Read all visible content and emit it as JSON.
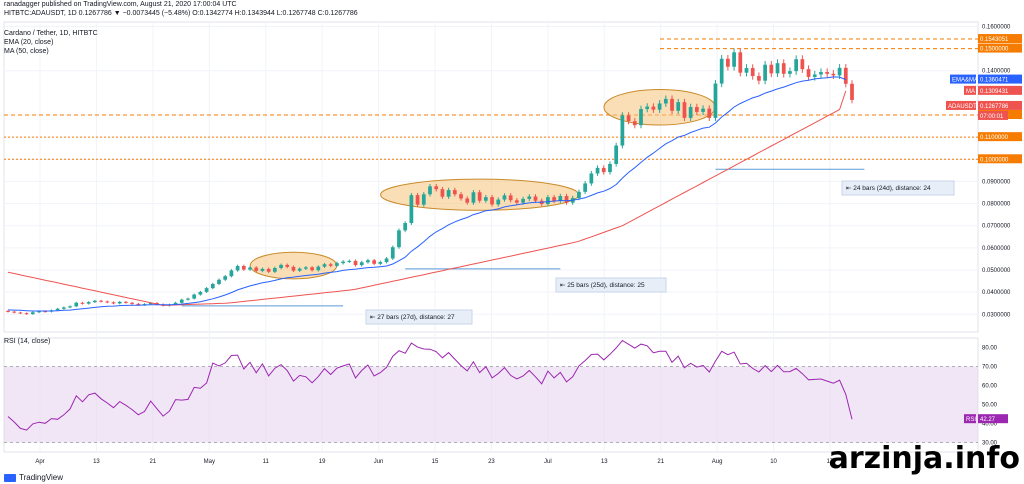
{
  "header": {
    "published": "ranadagger published on TradingView.com, August 21, 2020 17:00:04 UTC",
    "symbol_line": "HITBTC:ADAUSDT, 1D  0.1267786 ▼ −0.0073445 (−5.48%) O:0.1342774 H:0.1343944 L:0.1267748 C:0.1267786",
    "pair": "Cardano / Tether, 1D, HITBTC",
    "ema": "EMA (20, close)",
    "ma": "MA (50, close)",
    "rsi": "RSI (14, close)"
  },
  "watermark": "arzinja.info",
  "brand": "TradingView",
  "colors": {
    "up": "#26a69a",
    "down": "#ef5350",
    "ema": "#2962ff",
    "ma": "#ef5350",
    "rsi_line": "#9c27b0",
    "rsi_band": "#e8d6f0",
    "level": "#f57c00",
    "ellipse_fill": "#f6c27a",
    "ellipse_stroke": "#c98a2a",
    "measure": "#5b9bd5"
  },
  "chart_data": {
    "type": "candlestick",
    "x_labels": [
      "Apr",
      "13",
      "21",
      "May",
      "11",
      "19",
      "Jun",
      "15",
      "23",
      "Jul",
      "13",
      "21",
      "Aug",
      "10",
      "17"
    ],
    "y_ticks": [
      "0.1600000",
      "0.1400000",
      "0.1200000",
      "0.1100000",
      "0.1000000",
      "0.0900000",
      "0.0800000",
      "0.0700000",
      "0.0600000",
      "0.0500000",
      "0.0400000",
      "0.0300000"
    ],
    "ylim": [
      0.022,
      0.162
    ],
    "close": [
      0.0312,
      0.0308,
      0.0305,
      0.0301,
      0.0309,
      0.0314,
      0.0312,
      0.0318,
      0.0325,
      0.0331,
      0.0336,
      0.0352,
      0.0348,
      0.0355,
      0.0361,
      0.0358,
      0.0354,
      0.0349,
      0.0356,
      0.0352,
      0.0347,
      0.0342,
      0.0346,
      0.0351,
      0.0345,
      0.0339,
      0.0344,
      0.0352,
      0.0366,
      0.0371,
      0.0389,
      0.0401,
      0.0418,
      0.0437,
      0.0456,
      0.0472,
      0.0498,
      0.0518,
      0.0502,
      0.0511,
      0.0496,
      0.0505,
      0.0492,
      0.0509,
      0.0523,
      0.0514,
      0.0497,
      0.0506,
      0.0512,
      0.0499,
      0.0515,
      0.0526,
      0.0519,
      0.0531,
      0.0538,
      0.0541,
      0.0522,
      0.0535,
      0.0544,
      0.0528,
      0.0536,
      0.0552,
      0.0603,
      0.0679,
      0.0712,
      0.0838,
      0.0795,
      0.0842,
      0.0878,
      0.0865,
      0.0831,
      0.0861,
      0.0842,
      0.0823,
      0.0804,
      0.0851,
      0.0813,
      0.0829,
      0.0796,
      0.0818,
      0.0837,
      0.0815,
      0.0804,
      0.0821,
      0.0832,
      0.0813,
      0.0798,
      0.0829,
      0.0812,
      0.0834,
      0.0804,
      0.0825,
      0.0853,
      0.0891,
      0.0936,
      0.0961,
      0.0942,
      0.0979,
      0.1062,
      0.1198,
      0.1172,
      0.1154,
      0.1227,
      0.1238,
      0.1224,
      0.1252,
      0.1273,
      0.1219,
      0.1258,
      0.1187,
      0.1236,
      0.1214,
      0.1229,
      0.1187,
      0.1342,
      0.1454,
      0.1418,
      0.1483,
      0.1391,
      0.1412,
      0.1376,
      0.1355,
      0.1427,
      0.1388,
      0.1434,
      0.1386,
      0.1398,
      0.1452,
      0.1407,
      0.1372,
      0.1383,
      0.1394,
      0.1386,
      0.1379,
      0.1413,
      0.1341,
      0.1268
    ],
    "ema20": [
      0.032,
      0.0319,
      0.0318,
      0.0316,
      0.0315,
      0.0315,
      0.0315,
      0.0315,
      0.0316,
      0.0318,
      0.0319,
      0.0322,
      0.0325,
      0.0328,
      0.0331,
      0.0334,
      0.0336,
      0.0337,
      0.0339,
      0.034,
      0.0341,
      0.0341,
      0.0342,
      0.0343,
      0.0343,
      0.0343,
      0.0343,
      0.0344,
      0.0346,
      0.0349,
      0.0353,
      0.0357,
      0.0363,
      0.037,
      0.0378,
      0.0387,
      0.0398,
      0.041,
      0.0419,
      0.0428,
      0.0435,
      0.0442,
      0.0447,
      0.0453,
      0.046,
      0.0465,
      0.0468,
      0.0472,
      0.0475,
      0.0478,
      0.0481,
      0.0486,
      0.0489,
      0.0493,
      0.0498,
      0.0502,
      0.0504,
      0.0507,
      0.0511,
      0.0512,
      0.0515,
      0.0518,
      0.0527,
      0.0542,
      0.0558,
      0.0585,
      0.0605,
      0.0628,
      0.0652,
      0.0672,
      0.0687,
      0.0704,
      0.0717,
      0.0728,
      0.0737,
      0.075,
      0.0758,
      0.0768,
      0.0771,
      0.0776,
      0.0785,
      0.079,
      0.0794,
      0.0799,
      0.0803,
      0.0806,
      0.0806,
      0.0809,
      0.0811,
      0.0814,
      0.0813,
      0.0815,
      0.082,
      0.0826,
      0.0837,
      0.0848,
      0.0856,
      0.0868,
      0.0886,
      0.0915,
      0.0941,
      0.0962,
      0.0986,
      0.1009,
      0.1028,
      0.1049,
      0.107,
      0.1084,
      0.11,
      0.1108,
      0.1121,
      0.1131,
      0.1141,
      0.1145,
      0.1164,
      0.1191,
      0.1212,
      0.1236,
      0.1252,
      0.1265,
      0.1277,
      0.1286,
      0.1299,
      0.1308,
      0.1318,
      0.1326,
      0.1336,
      0.1346,
      0.1353,
      0.1357,
      0.1363,
      0.1366,
      0.1368,
      0.1372,
      0.1371,
      0.136
    ],
    "ma50": [
      0.049,
      0.0484,
      0.0478,
      0.0472,
      0.0466,
      0.046,
      0.0454,
      0.0448,
      0.0442,
      0.0436,
      0.043,
      0.0424,
      0.0418,
      0.0412,
      0.0406,
      0.04,
      0.0394,
      0.0388,
      0.0382,
      0.0376,
      0.037,
      0.0364,
      0.0358,
      0.0352,
      0.0346,
      0.034,
      0.0341,
      0.0342,
      0.0343,
      0.0344,
      0.0345,
      0.0346,
      0.0347,
      0.0348,
      0.0349,
      0.035,
      0.0352,
      0.0355,
      0.0358,
      0.0361,
      0.0364,
      0.0367,
      0.037,
      0.0373,
      0.0376,
      0.0379,
      0.0382,
      0.0385,
      0.0388,
      0.0391,
      0.0394,
      0.0397,
      0.04,
      0.0403,
      0.0406,
      0.0409,
      0.0413,
      0.0419,
      0.0425,
      0.0431,
      0.0437,
      0.0443,
      0.0449,
      0.0455,
      0.0461,
      0.0467,
      0.0473,
      0.0479,
      0.0485,
      0.0491,
      0.0497,
      0.0503,
      0.0509,
      0.0515,
      0.0521,
      0.0527,
      0.0533,
      0.0539,
      0.0545,
      0.0551,
      0.0557,
      0.0563,
      0.0569,
      0.0575,
      0.0581,
      0.0587,
      0.0593,
      0.0599,
      0.0605,
      0.0611,
      0.0617,
      0.0623,
      0.063,
      0.064,
      0.065,
      0.066,
      0.067,
      0.068,
      0.069,
      0.07,
      0.0715,
      0.073,
      0.0745,
      0.076,
      0.0775,
      0.079,
      0.0805,
      0.082,
      0.0835,
      0.085,
      0.0865,
      0.088,
      0.0895,
      0.091,
      0.0925,
      0.094,
      0.0955,
      0.097,
      0.0985,
      0.1,
      0.1015,
      0.103,
      0.1045,
      0.106,
      0.1075,
      0.109,
      0.1105,
      0.112,
      0.1135,
      0.115,
      0.1165,
      0.118,
      0.1195,
      0.121,
      0.1225,
      0.1309
    ],
    "rsi": [
      43.7,
      40.8,
      37.4,
      36.5,
      39.8,
      40.7,
      40.1,
      42.6,
      42.2,
      44.6,
      47.7,
      54.6,
      51.4,
      55.1,
      56.0,
      53.0,
      50.8,
      48.3,
      51.5,
      49.6,
      47.3,
      44.6,
      46.3,
      51.8,
      47.8,
      43.9,
      46.5,
      52.6,
      52.3,
      52.7,
      59.0,
      58.6,
      61.3,
      71.8,
      70.3,
      71.9,
      75.8,
      76.0,
      68.7,
      72.2,
      66.7,
      71.4,
      65.0,
      69.1,
      71.0,
      67.8,
      62.3,
      65.3,
      64.6,
      61.4,
      64.7,
      68.9,
      65.8,
      69.1,
      70.3,
      71.3,
      64.0,
      67.9,
      70.8,
      65.0,
      66.8,
      69.6,
      75.4,
      78.3,
      77.0,
      82.3,
      80.2,
      79.2,
      79.1,
      77.8,
      74.6,
      77.3,
      73.9,
      70.5,
      67.7,
      72.5,
      66.8,
      69.9,
      64.0,
      66.3,
      69.4,
      65.3,
      63.5,
      65.0,
      67.9,
      64.6,
      60.9,
      67.6,
      64.0,
      66.9,
      61.9,
      64.6,
      70.3,
      73.1,
      76.3,
      76.5,
      73.5,
      76.4,
      79.8,
      83.7,
      81.7,
      79.7,
      81.8,
      80.9,
      77.2,
      78.0,
      78.0,
      72.2,
      75.5,
      69.3,
      71.7,
      69.7,
      70.6,
      67.1,
      72.9,
      78.0,
      76.2,
      77.6,
      71.3,
      71.7,
      69.0,
      67.1,
      70.5,
      67.3,
      70.6,
      67.2,
      67.3,
      69.0,
      66.2,
      63.0,
      63.2,
      63.4,
      62.3,
      61.2,
      62.8,
      55.3,
      42.27
    ],
    "rsi_ylim": [
      25,
      85
    ],
    "rsi_ticks": [
      "80.00",
      "70.00",
      "60.00",
      "50.00",
      "40.00",
      "30.00"
    ],
    "labels": {
      "ema_ma": "EMA&MA",
      "ema_value": "0.1360471",
      "ma_label": "MA",
      "ma_value": "0.1309431",
      "symbol": "ADAUSDT",
      "last_price": "0.1267786",
      "countdown": "07:00:01",
      "r1_value": "0.1543051",
      "r2_value": "0.1500000",
      "s1_value": "0.1200000",
      "s2_value": "0.1100000",
      "s3_value": "0.1000000",
      "rsi_label": "RSI",
      "rsi_value": "42.27"
    },
    "levels": [
      0.1543,
      0.15,
      0.12,
      0.11,
      0.1
    ],
    "measures": [
      {
        "text": "27 bars (27d), distance: 27"
      },
      {
        "text": "25 bars (25d), distance: 25"
      },
      {
        "text": "24 bars (24d), distance: 24"
      }
    ],
    "grid": true
  }
}
